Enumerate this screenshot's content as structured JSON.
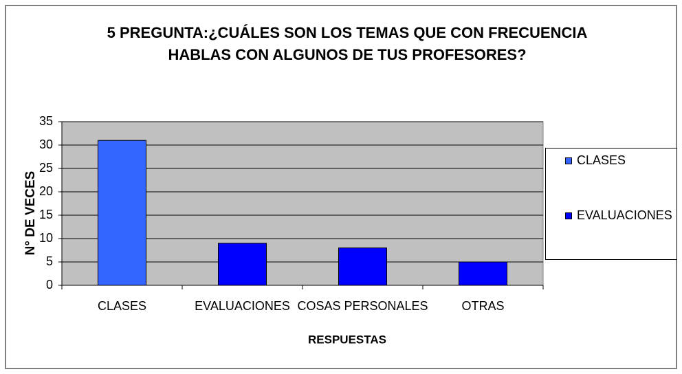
{
  "chart_data": {
    "type": "bar",
    "title": "5 PREGUNTA:¿CUÁLES SON LOS TEMAS QUE CON FRECUENCIA HABLAS CON ALGUNOS DE TUS PROFESORES?",
    "xlabel": "RESPUESTAS",
    "ylabel": "N° DE VECES",
    "categories": [
      "CLASES",
      "EVALUACIONES",
      "COSAS PERSONALES",
      "OTRAS"
    ],
    "values": [
      31,
      9,
      8,
      5
    ],
    "colors": [
      "#3366ff",
      "#0000ff",
      "#0000ff",
      "#0000ff"
    ],
    "ylim": [
      0,
      35
    ],
    "yticks": [
      0,
      5,
      10,
      15,
      20,
      25,
      30,
      35
    ],
    "grid": true,
    "legend": "right"
  }
}
